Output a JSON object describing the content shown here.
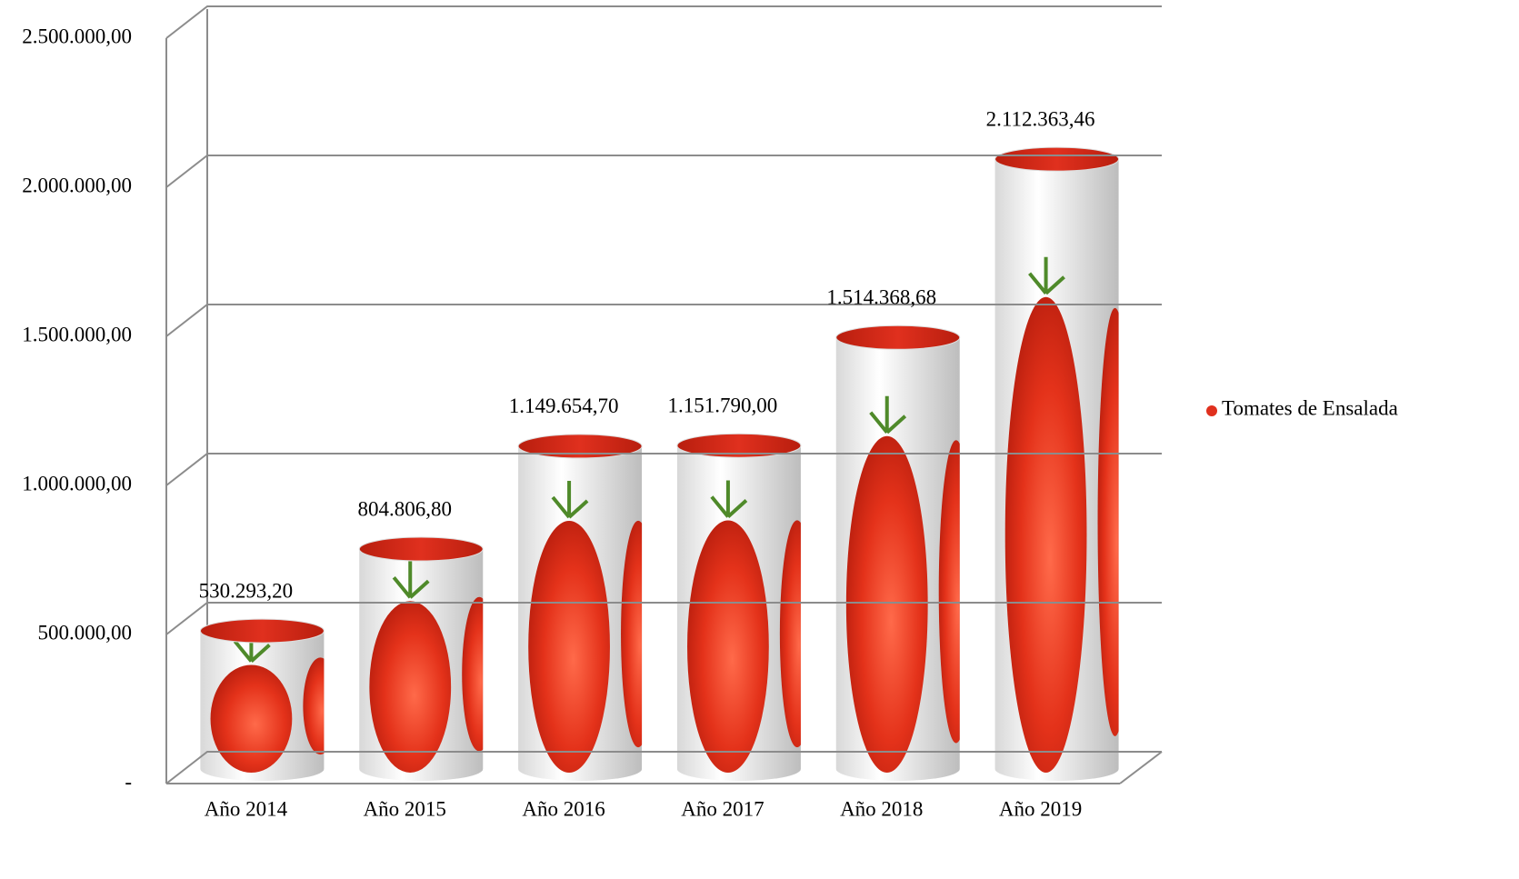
{
  "chart_data": {
    "type": "bar",
    "categories": [
      "Año 2014",
      "Año 2015",
      "Año 2016",
      "Año 2017",
      "Año 2018",
      "Año 2019"
    ],
    "series": [
      {
        "name": "Tomates de Ensalada",
        "color": "#e0301e",
        "values": [
          530293.2,
          804806.8,
          1149654.7,
          1151790.0,
          1514368.68,
          2112363.46
        ],
        "value_labels": [
          "530.293,20",
          "804.806,80",
          "1.149.654,70",
          "1.151.790,00",
          "1.514.368,68",
          "2.112.363,46"
        ]
      }
    ],
    "ylim": [
      0,
      2500000
    ],
    "yticks": [
      {
        "value": 0,
        "label": "-"
      },
      {
        "value": 500000,
        "label": "500.000,00"
      },
      {
        "value": 1000000,
        "label": "1.000.000,00"
      },
      {
        "value": 1500000,
        "label": "1.500.000,00"
      },
      {
        "value": 2000000,
        "label": "2.000.000,00"
      },
      {
        "value": 2500000,
        "label": "2.500.000,00"
      }
    ],
    "grid": true,
    "legend": "right"
  }
}
